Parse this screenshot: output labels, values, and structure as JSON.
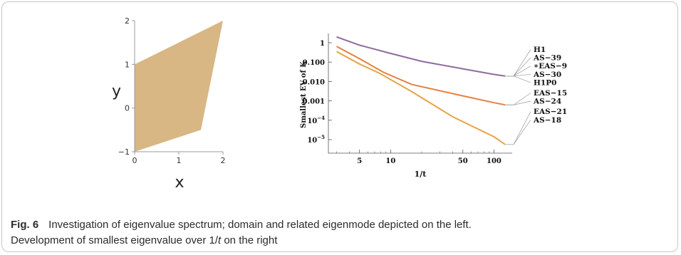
{
  "charts": [
    {
      "id": "domain",
      "chart_data": {
        "type": "area",
        "xlabel": "x",
        "ylabel": "y",
        "xlim": [
          0,
          2
        ],
        "ylim": [
          -1,
          2
        ],
        "xticks": [
          "0",
          "1",
          "2"
        ],
        "yticks": [
          "-1",
          "0",
          "1",
          "2"
        ],
        "polygon": [
          [
            0,
            -1
          ],
          [
            1.5,
            -0.5
          ],
          [
            2,
            2
          ],
          [
            0,
            1
          ]
        ],
        "fill_color": "#D8B785"
      }
    },
    {
      "id": "eigen",
      "chart_data": {
        "type": "line",
        "xlabel": "1/t",
        "ylabel": "Smallest EV of K",
        "x_scale": "log",
        "y_scale": "log",
        "xlim": [
          2.5,
          150
        ],
        "ylim": [
          2e-06,
          3
        ],
        "xticks": [
          {
            "v": 5,
            "label": "5"
          },
          {
            "v": 10,
            "label": "10"
          },
          {
            "v": 50,
            "label": "50"
          },
          {
            "v": 100,
            "label": "100"
          }
        ],
        "yticks": [
          {
            "v": 1,
            "label": "1"
          },
          {
            "v": 0.1,
            "label": "0.100"
          },
          {
            "v": 0.01,
            "label": "0.010"
          },
          {
            "v": 0.001,
            "label": "0.001"
          },
          {
            "v": 0.0001,
            "label": "10",
            "exp": "−4"
          },
          {
            "v": 1e-05,
            "label": "10",
            "exp": "−5"
          }
        ],
        "series": [
          {
            "color": "#8E6B9E",
            "points": [
              [
                3,
                2
              ],
              [
                5,
                0.75
              ],
              [
                10,
                0.28
              ],
              [
                20,
                0.11
              ],
              [
                50,
                0.045
              ],
              [
                100,
                0.023
              ],
              [
                128,
                0.019
              ]
            ]
          },
          {
            "color": "#E5813F",
            "points": [
              [
                3,
                0.65
              ],
              [
                5,
                0.15
              ],
              [
                8.5,
                0.03
              ],
              [
                16,
                0.007
              ],
              [
                50,
                0.0018
              ],
              [
                100,
                0.0008
              ],
              [
                128,
                0.00062
              ]
            ]
          },
          {
            "color": "#E5A34A",
            "points": [
              [
                3,
                0.35
              ],
              [
                5,
                0.08
              ],
              [
                8,
                0.025
              ],
              [
                16,
                0.003
              ],
              [
                40,
                0.00015
              ],
              [
                100,
                1.4e-05
              ],
              [
                128,
                5.6e-06
              ]
            ]
          }
        ],
        "labels": [
          "H1",
          "AS−39",
          "∗EAS−9",
          "AS−30",
          "H1P0",
          "EAS−15",
          "AS−24",
          "EAS−21",
          "AS−18"
        ],
        "label_groups": [
          {
            "series": 0,
            "members": [
              0,
              1,
              2,
              3,
              4
            ]
          },
          {
            "series": 1,
            "members": [
              5,
              6
            ]
          },
          {
            "series": 2,
            "members": [
              7,
              8
            ]
          }
        ]
      }
    }
  ],
  "caption": {
    "label": "Fig. 6",
    "line1": "Investigation of eigenvalue spectrum; domain and related eigenmode depicted on the left.",
    "line2_a": "Development of smallest eigenvalue over 1/",
    "line2_t": "t",
    "line2_b": " on the right"
  }
}
